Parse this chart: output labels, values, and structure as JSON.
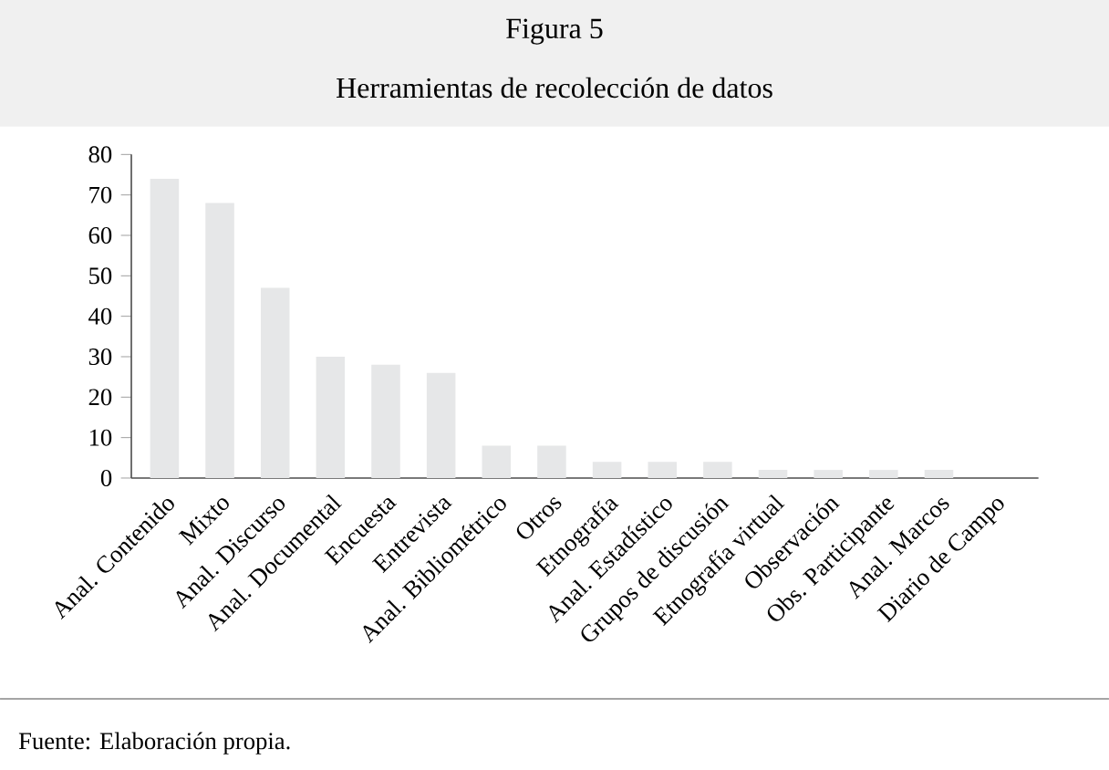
{
  "chart_data": {
    "type": "bar",
    "title": "Figura 5",
    "subtitle": "Herramientas de recolección de datos",
    "categories": [
      "Anal. Contenido",
      "Mixto",
      "Anal. Discurso",
      "Anal. Documental",
      "Encuesta",
      "Entrevista",
      "Anal. Bibliométrico",
      "Otros",
      "Etnografía",
      "Anal. Estadístico",
      "Grupos de discusión",
      "Etnografía virtual",
      "Observación",
      "Obs. Participante",
      "Anal. Marcos",
      "Diario de Campo"
    ],
    "values": [
      74,
      68,
      47,
      30,
      28,
      26,
      8,
      8,
      4,
      4,
      4,
      2,
      2,
      2,
      2,
      0
    ],
    "color": "#e6e7e8",
    "ylim": [
      0,
      80
    ],
    "yticks": [
      0,
      10,
      20,
      30,
      40,
      50,
      60,
      70,
      80
    ],
    "annotations": [
      "Fuente: Elaboración propia."
    ]
  }
}
